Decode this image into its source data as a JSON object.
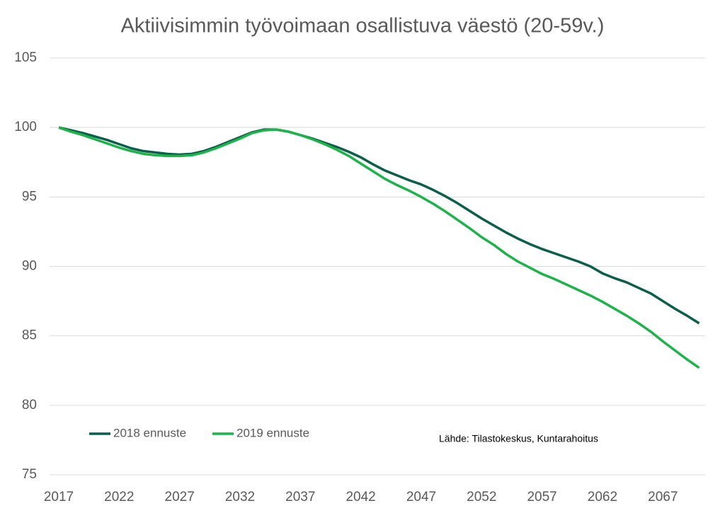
{
  "chart_data": {
    "type": "line",
    "title": "Aktiivisimmin työvoimaan osallistuva väestö (20-59v.)",
    "annotation": "Lähde: Tilastokeskus,  Kuntarahoitus",
    "x": [
      2017,
      2018,
      2019,
      2020,
      2021,
      2022,
      2023,
      2024,
      2025,
      2026,
      2027,
      2028,
      2029,
      2030,
      2031,
      2032,
      2033,
      2034,
      2035,
      2036,
      2037,
      2038,
      2039,
      2040,
      2041,
      2042,
      2043,
      2044,
      2045,
      2046,
      2047,
      2048,
      2049,
      2050,
      2051,
      2052,
      2053,
      2054,
      2055,
      2056,
      2057,
      2058,
      2059,
      2060,
      2061,
      2062,
      2063,
      2064,
      2065,
      2066,
      2067,
      2068,
      2069,
      2070
    ],
    "series": [
      {
        "name": "2018 ennuste",
        "color": "#0b5e4a",
        "values": [
          100,
          99.8,
          99.6,
          99.35,
          99.1,
          98.8,
          98.5,
          98.3,
          98.2,
          98.1,
          98.05,
          98.1,
          98.3,
          98.6,
          98.95,
          99.3,
          99.65,
          99.85,
          99.85,
          99.7,
          99.45,
          99.2,
          98.9,
          98.6,
          98.25,
          97.85,
          97.35,
          96.9,
          96.55,
          96.2,
          95.9,
          95.5,
          95.05,
          94.55,
          94.0,
          93.45,
          92.95,
          92.45,
          92.0,
          91.6,
          91.25,
          90.95,
          90.65,
          90.35,
          90.0,
          89.5,
          89.15,
          88.85,
          88.45,
          88.05,
          87.5,
          86.95,
          86.45,
          85.9
        ]
      },
      {
        "name": "2019 ennuste",
        "color": "#1db34a",
        "values": [
          100,
          99.7,
          99.45,
          99.15,
          98.85,
          98.55,
          98.3,
          98.1,
          98.0,
          97.95,
          97.95,
          98.0,
          98.2,
          98.5,
          98.85,
          99.2,
          99.6,
          99.8,
          99.85,
          99.7,
          99.45,
          99.15,
          98.8,
          98.4,
          97.95,
          97.4,
          96.85,
          96.3,
          95.85,
          95.45,
          95.0,
          94.5,
          93.95,
          93.35,
          92.75,
          92.1,
          91.55,
          90.9,
          90.35,
          89.9,
          89.45,
          89.1,
          88.7,
          88.3,
          87.9,
          87.45,
          86.95,
          86.45,
          85.9,
          85.3,
          84.6,
          83.95,
          83.3,
          82.7
        ]
      }
    ],
    "xlim": [
      2017,
      2070.5
    ],
    "xticks": [
      2017,
      2022,
      2027,
      2032,
      2037,
      2042,
      2047,
      2052,
      2057,
      2062,
      2067
    ],
    "ylim": [
      75,
      105
    ],
    "yticks": [
      75,
      80,
      85,
      90,
      95,
      100,
      105
    ],
    "grid": true,
    "legend": "bottom-left"
  }
}
